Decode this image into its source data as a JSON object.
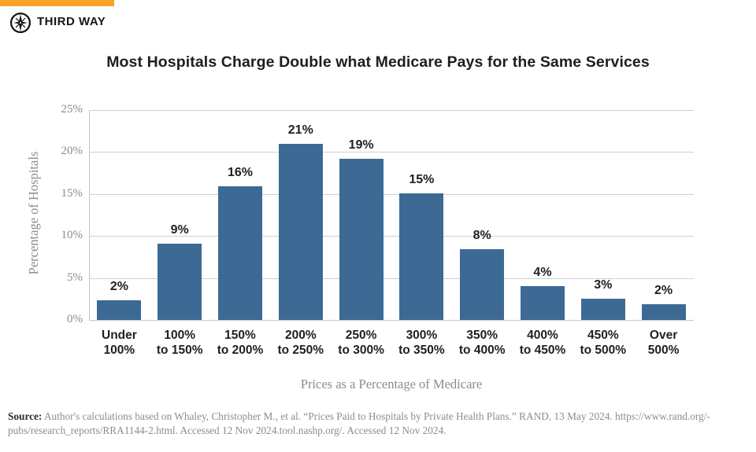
{
  "brand": {
    "name": "THIRD WAY",
    "accent_color": "#F9A22B",
    "logo_icon": "compass-star-icon"
  },
  "title": "Most Hospitals Charge Double what Medicare Pays for the Same Services",
  "chart_data": {
    "type": "bar",
    "title": "Most Hospitals Charge Double what Medicare Pays for the Same Services",
    "categories": [
      "Under\n100%",
      "100%\nto 150%",
      "150%\nto 200%",
      "200%\nto 250%",
      "250%\nto 300%",
      "300%\nto 350%",
      "350%\nto 400%",
      "400%\nto 450%",
      "450%\nto 500%",
      "Over\n500%"
    ],
    "values": [
      2.3,
      9.1,
      15.9,
      21.0,
      19.2,
      15.1,
      8.4,
      4.0,
      2.5,
      1.9
    ],
    "labels": [
      "2%",
      "9%",
      "16%",
      "21%",
      "19%",
      "15%",
      "8%",
      "4%",
      "3%",
      "2%"
    ],
    "xlabel": "Prices as a Percentage of Medicare",
    "ylabel": "Percentage of Hospitals",
    "ylim": [
      0,
      25
    ],
    "yticks": [
      0,
      5,
      10,
      15,
      20,
      25
    ],
    "ytick_labels": [
      "0%",
      "5%",
      "10%",
      "15%",
      "20%",
      "25%"
    ],
    "grid": true,
    "legend": "none",
    "bar_color": "#3D6A94"
  },
  "footer": {
    "source_label": "Source:",
    "source_line1": "Author's calculations based on Whaley, Christopher M., et al. “Prices Paid to Hospitals by Private Health Plans.” RAND, 13 May 2024. https://www.rand.org/-",
    "source_line2": "pubs/research_reports/RRA1144-2.html. Accessed 12 Nov 2024.tool.nashp.org/. Accessed 12 Nov 2024."
  }
}
